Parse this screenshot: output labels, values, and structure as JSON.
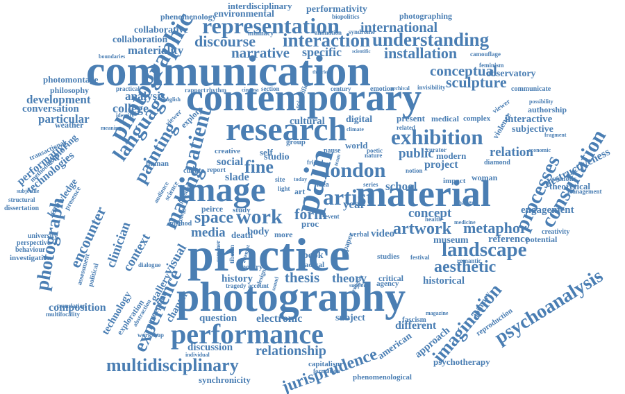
{
  "colors": {
    "text": "#4a7eb3",
    "background": "#ffffff"
  },
  "words": {
    "interdisciplinary": "interdisciplinary",
    "performativity": "performativity",
    "environmental": "environmental",
    "phenomenology": "phenomenology",
    "photographing": "photographing",
    "representation": "representation",
    "international": "international",
    "collaborative": "collaborative",
    "collaboration": "collaboration",
    "discourse": "discourse",
    "interaction": "interaction",
    "understanding": "understanding",
    "materiality": "materiality",
    "narrative": "narrative",
    "specific": "specific",
    "installation": "installation",
    "communication": "communication",
    "contemporary": "contemporary",
    "research": "research",
    "exhibition": "exhibition",
    "language": "language",
    "photographic": "photographic",
    "painting": "painting",
    "patient": "patient",
    "london": "london",
    "public": "public",
    "project": "project",
    "processes": "processes",
    "relation": "relation",
    "image": "image",
    "artist": "artist",
    "pain": "pain",
    "material": "material",
    "consultation": "consultation",
    "making": "making",
    "photograph": "photograph",
    "experience": "experience",
    "encounter": "encounter",
    "clinician": "clinician",
    "context": "context",
    "visual": "visual",
    "gallery": "gallery",
    "space": "space",
    "work": "work",
    "artwork": "artwork",
    "metaphor": "metaphor",
    "concept": "concept",
    "landscape": "landscape",
    "aesthetic": "aesthetic",
    "engagement": "engagement",
    "psychoanalysis": "psychoanalysis",
    "practice": "practice",
    "photography": "photography",
    "performance": "performance",
    "thesis": "thesis",
    "theory": "theory",
    "history": "history",
    "media": "media",
    "relationship": "relationship",
    "multidisciplinary": "multidisciplinary",
    "jurisprudence": "jurisprudence",
    "imagination": "imagination",
    "discussion": "discussion",
    "electronic": "electronic",
    "question": "question",
    "subject": "subject",
    "different": "different",
    "american": "american",
    "approach": "approach",
    "synchronicity": "synchronicity",
    "phenomenological": "phenomenological",
    "psychotherapy": "psychotherapy",
    "capitalism": "capitalism",
    "conceptual": "conceptual",
    "sculpture": "sculpture",
    "observatory": "observatory",
    "interactive": "interactive",
    "subjective": "subjective",
    "destructiveness": "destructiveness",
    "theoretical": "theoretical",
    "museum": "museum",
    "reference": "reference",
    "potential": "potential",
    "historical": "historical",
    "journey": "journey",
    "reproduction": "reproduction",
    "development": "development",
    "philosophy": "philosophy",
    "photomontage": "photomontage",
    "conversation": "conversation",
    "particular": "particular",
    "performative": "performative",
    "technologies": "technologies",
    "knowledge": "knowledge",
    "dissertation": "dissertation",
    "university": "university",
    "investigation": "investigation",
    "perspective": "perspective",
    "behaviour": "behaviour",
    "composition": "composition",
    "translation": "translation",
    "multifocality": "multifocality",
    "technology": "technology",
    "chapter": "chapter",
    "perception": "perception",
    "exploration": "exploration",
    "college": "college",
    "analysis": "analysis",
    "weather": "weather",
    "cultural": "cultural",
    "culture": "culture",
    "social": "social",
    "fine": "fine",
    "slade": "slade",
    "digital": "digital",
    "present": "present",
    "medical": "medical",
    "complex": "complex",
    "world": "world",
    "modern": "modern",
    "school": "school",
    "form": "form",
    "body": "body",
    "idea": "idea",
    "video": "video",
    "book": "book",
    "radical": "radical",
    "studies": "studies",
    "critical": "critical",
    "agency": "agency",
    "woman": "woman",
    "change": "change",
    "authorship": "authorship",
    "communicate": "communicate",
    "management": "management",
    "creativity": "creativity",
    "semiotic": "semiotic",
    "fascism": "fascism",
    "workshop": "workshop",
    "international2": "international",
    "photographic2": "photographic",
    "year": "year",
    "report": "report",
    "rhythm": "rhythm",
    "emotion": "emotion",
    "century": "century",
    "section": "section",
    "identity": "identity",
    "transactional": "transactional",
    "exploring": "exploring",
    "methodology": "methodology",
    "presence": "presence",
    "subjectile": "subjectile",
    "structural": "structural",
    "political": "political",
    "assessment": "assessment",
    "abstraction": "abstraction",
    "dialogue": "dialogue",
    "method": "method",
    "peirce": "peirce",
    "study": "study",
    "poetry": "poetry",
    "boundaries": "boundaries",
    "animation": "animation",
    "syndrome": "syndrome",
    "biopolitics": "biopolitics",
    "intimacy": "intimacy",
    "camouflage": "camouflage",
    "feminism": "feminism",
    "invisibility": "invisibility",
    "archival": "archival",
    "possibility": "possibility",
    "violence": "violence",
    "fragment": "fragment",
    "economic": "economic",
    "diamond": "diamond",
    "curator": "curator",
    "health": "health",
    "medicine": "medicine",
    "festival": "festival",
    "romantic": "romantic",
    "magazine": "magazine",
    "formation": "formation",
    "individual": "individual",
    "verbal": "verbal",
    "event": "event",
    "meaning": "meaning",
    "viewer": "viewer",
    "explore": "explore",
    "english": "english",
    "human": "human",
    "science": "science",
    "tragedy": "tragedy",
    "account": "account",
    "art": "art",
    "proc": "proc",
    "self": "self",
    "site": "site",
    "series": "series",
    "rapport": "rapport",
    "practical": "practical",
    "cinema": "cinema",
    "climate": "climate",
    "poetic": "poetic",
    "nature": "nature",
    "related": "related",
    "impact": "impact",
    "notion": "notion",
    "light": "light",
    "role": "role",
    "ecology": "ecology",
    "audience": "audience",
    "person": "person",
    "studio": "studio",
    "creative": "creative",
    "friend": "friend",
    "today": "today",
    "team": "team",
    "more": "more",
    "death": "death",
    "paper": "paper",
    "religion": "religion",
    "support": "support",
    "design": "design",
    "tibetan": "tibetan",
    "summer": "summer",
    "attempt": "attempt",
    "sound": "sound",
    "group": "group",
    "pause": "pause",
    "scientific": "scientific",
    "theories": "theories"
  }
}
